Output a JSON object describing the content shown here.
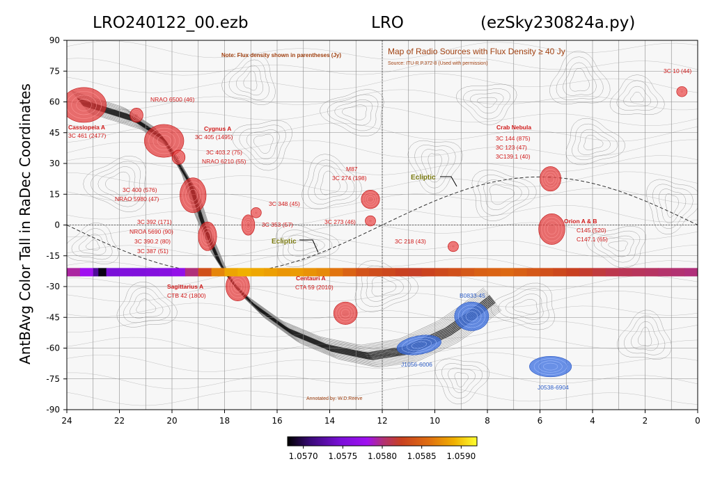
{
  "chart_data": {
    "type": "heatmap",
    "title_left": "LRO240122_00.ezb",
    "title_center": "LRO",
    "title_right": "(ezSky230824a.py)",
    "ylabel": "AntBAvg Color Tall in RaDec Coordinates",
    "xlabel": "",
    "xlim": [
      24,
      0
    ],
    "ylim": [
      -90,
      90
    ],
    "x_ticks": [
      24,
      22,
      20,
      18,
      16,
      14,
      12,
      10,
      8,
      6,
      4,
      2,
      0
    ],
    "y_ticks": [
      90,
      75,
      60,
      45,
      30,
      15,
      0,
      -15,
      -30,
      -45,
      -60,
      -75,
      -90
    ],
    "grid": true,
    "colorbar": {
      "ticks": [
        "1.0570",
        "1.0575",
        "1.0580",
        "1.0585",
        "1.0590"
      ],
      "range": [
        1.0568,
        1.0592
      ],
      "colormap": [
        "#000000",
        "#3a0a78",
        "#7a10d8",
        "#a010f0",
        "#b0307a",
        "#c84020",
        "#e07010",
        "#f0b000",
        "#ffff30"
      ]
    },
    "data_strip": {
      "dec": -23,
      "ra": [
        24.0,
        23.5,
        23.0,
        22.8,
        22.5,
        22.0,
        21.5,
        21.0,
        20.5,
        20.0,
        19.5,
        19.0,
        18.5,
        18.0,
        17.5,
        17.0,
        16.5,
        16.0,
        15.5,
        15.0,
        14.5,
        14.0,
        13.5,
        13.0,
        12.5,
        12.0,
        11.5,
        11.0,
        10.5,
        10.0,
        9.5,
        9.0,
        8.5,
        8.0,
        7.5,
        7.0,
        6.5,
        6.0,
        5.5,
        5.0,
        4.5,
        4.0,
        3.5,
        3.0,
        2.5,
        2.0,
        1.5,
        1.0,
        0.5,
        0.0
      ],
      "values": [
        1.0579,
        1.0577,
        1.0572,
        1.05685,
        1.0574,
        1.05745,
        1.05745,
        1.05748,
        1.0575,
        1.0576,
        1.058,
        1.0584,
        1.0587,
        1.05885,
        1.0589,
        1.05886,
        1.05882,
        1.05878,
        1.0588,
        1.05876,
        1.05872,
        1.05862,
        1.05852,
        1.05842,
        1.05838,
        1.05835,
        1.0583,
        1.05828,
        1.05832,
        1.05836,
        1.0584,
        1.05845,
        1.0585,
        1.05852,
        1.05855,
        1.0585,
        1.05845,
        1.0584,
        1.05835,
        1.0583,
        1.05825,
        1.0582,
        1.05815,
        1.05812,
        1.0581,
        1.05808,
        1.05805,
        1.05803,
        1.058,
        1.05798
      ]
    },
    "overlay": {
      "note": "Note: Flux density shown in parentheses (Jy)",
      "map_title": "Map of Radio Sources with Flux Density ≥ 40 Jy",
      "map_source": "Source: ITU-R P.372-8 (Used with permission)",
      "annotated_by": "Annotated by: W.D.Reeve",
      "ecliptic_label_1": "Ecliptic",
      "ecliptic_label_2": "Ecliptic",
      "red_sources": [
        {
          "ra": 23.35,
          "dec": 58.5,
          "a": 0.85,
          "b": 8.5
        },
        {
          "ra": 21.35,
          "dec": 53.5,
          "a": 0.25,
          "b": 3.5
        },
        {
          "ra": 20.3,
          "dec": 41.0,
          "a": 0.75,
          "b": 8.0
        },
        {
          "ra": 19.75,
          "dec": 33.0,
          "a": 0.25,
          "b": 3.5
        },
        {
          "ra": 19.2,
          "dec": 14.5,
          "a": 0.5,
          "b": 8.5
        },
        {
          "ra": 18.65,
          "dec": -5.5,
          "a": 0.35,
          "b": 7.0
        },
        {
          "ra": 17.5,
          "dec": -30.0,
          "a": 0.45,
          "b": 7.0
        },
        {
          "ra": 17.1,
          "dec": 0.0,
          "a": 0.25,
          "b": 5.0
        },
        {
          "ra": 16.8,
          "dec": 6.0,
          "a": 0.2,
          "b": 2.5
        },
        {
          "ra": 12.45,
          "dec": 12.5,
          "a": 0.35,
          "b": 4.5
        },
        {
          "ra": 12.45,
          "dec": 2.0,
          "a": 0.2,
          "b": 2.5
        },
        {
          "ra": 13.4,
          "dec": -43.0,
          "a": 0.45,
          "b": 5.5
        },
        {
          "ra": 9.3,
          "dec": -10.5,
          "a": 0.2,
          "b": 2.5
        },
        {
          "ra": 5.6,
          "dec": 22.5,
          "a": 0.4,
          "b": 6.0
        },
        {
          "ra": 5.55,
          "dec": -2.0,
          "a": 0.5,
          "b": 7.5
        },
        {
          "ra": 0.6,
          "dec": 65.0,
          "a": 0.2,
          "b": 2.5
        }
      ],
      "blue_sources": [
        {
          "ra": 8.6,
          "dec": -44.5,
          "a": 0.65,
          "b": 7.0,
          "rot": 0
        },
        {
          "ra": 10.6,
          "dec": -58.5,
          "a": 0.85,
          "b": 4.5,
          "rot": -10
        },
        {
          "ra": 5.6,
          "dec": -69.0,
          "a": 0.8,
          "b": 5.0,
          "rot": 0
        }
      ],
      "labels": {
        "cassiopeia_name": "Cassiopeia A",
        "cassiopeia_id": "3C 461 (2477)",
        "nrao6500": "NRAO 6500 (46)",
        "cygnus_name": "Cygnus A",
        "cygnus_id": "3C 405 (1495)",
        "c4032": "3C 403.2 (75)",
        "nrao6210": "NRAO 6210 (55)",
        "c400": "3C 400 (576)",
        "nrao5980": "NRAO 5980 (47)",
        "c348": "3C 348 (45)",
        "c353": "3C 353 (57)",
        "c392": "3C 392 (171)",
        "nroa5690": "NROA 5690 (90)",
        "c3902": "3C 390.2 (80)",
        "c387": "3C 387  (51)",
        "sagittarius_name": "Sagittarius A",
        "sagittarius_id": "CTB 42 (1800)",
        "m87_name": "M87",
        "m87_id": "3C 274 (198)",
        "c273": "3C 273 (46)",
        "centauri_name": "Centauri A",
        "centauri_id": "CTA 59 (2010)",
        "c218": "3C 218 (43)",
        "crab_name": "Crab Nebula",
        "crab_1": "3C 144 (875)",
        "crab_2": "3C 123 (47)",
        "crab_3": "3C139.1 (40)",
        "orion_name": "Orion A & B",
        "orion_1": "C145 (520)",
        "orion_2": "C147.1 (65)",
        "c10": "3C 10 (44)",
        "b0833": "B0833-45",
        "j1056": "J1056-6006",
        "j0538": "J0538-6904"
      }
    }
  }
}
